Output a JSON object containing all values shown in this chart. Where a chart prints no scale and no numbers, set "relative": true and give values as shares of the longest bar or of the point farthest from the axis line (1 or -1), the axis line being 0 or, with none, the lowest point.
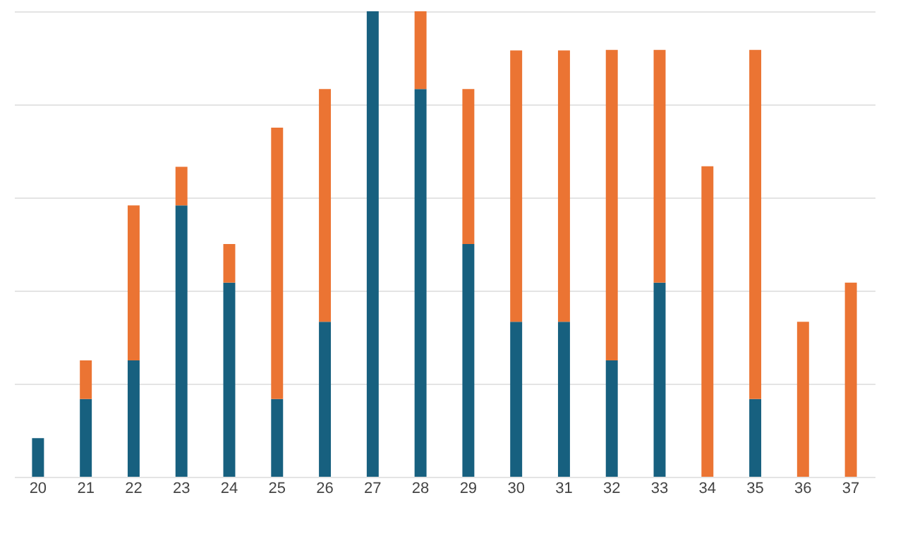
{
  "chart_data": {
    "type": "bar",
    "stacked": true,
    "relative": true,
    "grid": "y",
    "categories": [
      "20",
      "21",
      "22",
      "23",
      "24",
      "25",
      "26",
      "27",
      "28",
      "29",
      "30",
      "31",
      "32",
      "33",
      "34",
      "35",
      "36",
      "37"
    ],
    "series": [
      {
        "color": "#17607f",
        "values": [
          0.083,
          0.167,
          0.25,
          0.583,
          0.417,
          0.167,
          0.333,
          1,
          0.833,
          0.5,
          0.333,
          0.333,
          0.25,
          0.417,
          null,
          0.167,
          null,
          null
        ]
      },
      {
        "color": "#eb7433",
        "values": [
          null,
          0.083,
          0.333,
          0.083,
          0.083,
          0.583,
          0.5,
          null,
          0.167,
          0.333,
          0.583,
          0.583,
          0.667,
          0.5,
          0.667,
          0.75,
          0.333,
          0.417
        ]
      }
    ]
  }
}
